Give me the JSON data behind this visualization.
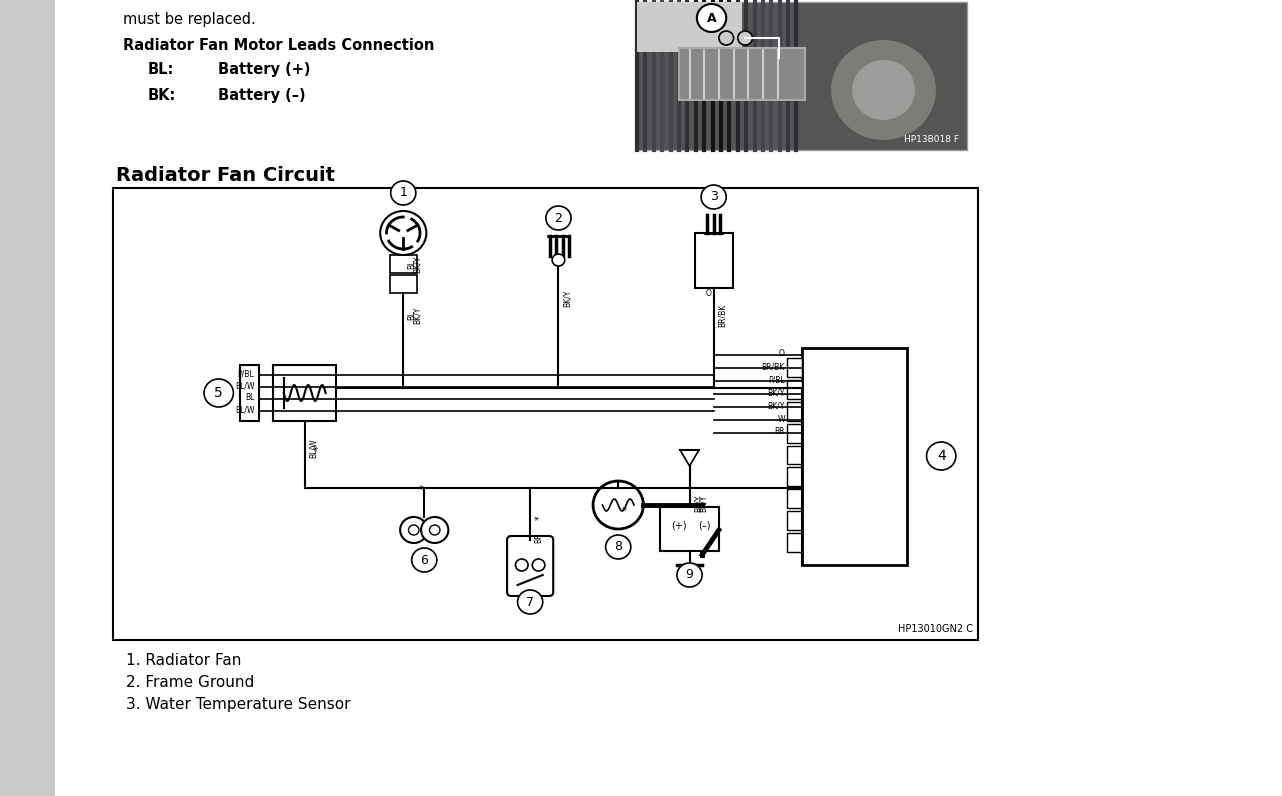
{
  "bg_color": "#c8c8c8",
  "page_bg": "#ffffff",
  "title_circuit": "Radiator Fan Circuit",
  "diagram_label": "HP13010GN2 C",
  "text_must_be_replaced": "must be replaced.",
  "text_rfmlc": "Radiator Fan Motor Leads Connection",
  "text_bl": "BL:",
  "text_bl_val": "Battery (+)",
  "text_bk": "BK:",
  "text_bk_val": "Battery (–)",
  "list_items": [
    "1. Radiator Fan",
    "2. Frame Ground",
    "3. Water Temperature Sensor"
  ],
  "wire_labels_left": [
    "P/BL",
    "BL/W",
    "BL",
    "BL/W"
  ],
  "wire_labels_right": [
    "O",
    "BR/BK",
    "P/BL",
    "BK/Y",
    "BK/Y",
    "W",
    "BR"
  ],
  "photo_label": "HP13B018 F"
}
